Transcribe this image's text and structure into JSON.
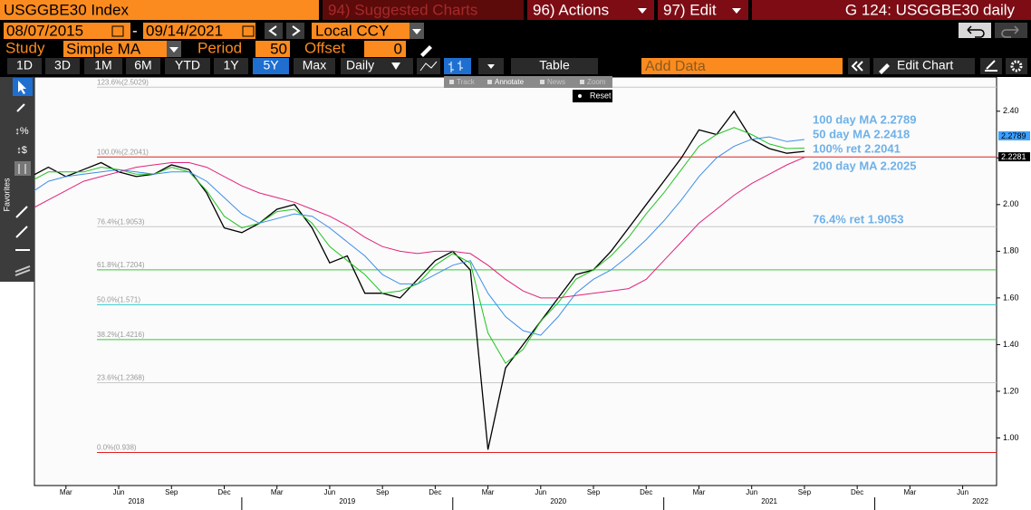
{
  "toolbar": {
    "security": "USGGBE30 Index",
    "suggested": "94) Suggested Charts",
    "actions": "96) Actions",
    "edit": "97) Edit",
    "chart_id": "G 124: USGGBE30 daily",
    "start_date": "08/07/2015",
    "date_separator": "-",
    "end_date": "09/14/2021",
    "currency": "Local CCY",
    "study_label": "Study",
    "study": "Simple MA",
    "period_label": "Period",
    "period": 50,
    "offset_label": "Offset",
    "offset": 0,
    "ranges": [
      "1D",
      "3D",
      "1M",
      "6M",
      "YTD",
      "1Y",
      "5Y",
      "Max"
    ],
    "frequency": "Daily",
    "table": "Table",
    "add_data": "Add Data",
    "edit_chart": "Edit Chart",
    "tools": [
      "Track",
      "Annotate",
      "News",
      "Zoom"
    ],
    "reset": "Reset",
    "favorites": "Favorites"
  },
  "chart_data": {
    "type": "line",
    "x": [
      "2018-01",
      "2018-02",
      "2018-03",
      "2018-04",
      "2018-05",
      "2018-06",
      "2018-07",
      "2018-08",
      "2018-09",
      "2018-10",
      "2018-11",
      "2018-12",
      "2019-01",
      "2019-02",
      "2019-03",
      "2019-04",
      "2019-05",
      "2019-06",
      "2019-07",
      "2019-08",
      "2019-09",
      "2019-10",
      "2019-11",
      "2019-12",
      "2020-01",
      "2020-02",
      "2020-03",
      "2020-04",
      "2020-05",
      "2020-06",
      "2020-07",
      "2020-08",
      "2020-09",
      "2020-10",
      "2020-11",
      "2020-12",
      "2021-01",
      "2021-02",
      "2021-03",
      "2021-04",
      "2021-05",
      "2021-06",
      "2021-07",
      "2021-08",
      "2021-09"
    ],
    "series": [
      {
        "color": "#000000",
        "values": [
          2.12,
          2.16,
          2.12,
          2.15,
          2.18,
          2.14,
          2.12,
          2.13,
          2.17,
          2.15,
          2.05,
          1.9,
          1.88,
          1.92,
          1.98,
          2.0,
          1.9,
          1.75,
          1.78,
          1.62,
          1.62,
          1.6,
          1.68,
          1.76,
          1.8,
          1.72,
          0.95,
          1.3,
          1.4,
          1.5,
          1.6,
          1.7,
          1.72,
          1.8,
          1.9,
          2.0,
          2.1,
          2.2,
          2.32,
          2.3,
          2.4,
          2.28,
          2.24,
          2.22,
          2.2281
        ]
      },
      {
        "color": "#22c322",
        "values": [
          2.1,
          2.14,
          2.14,
          2.14,
          2.16,
          2.15,
          2.13,
          2.13,
          2.16,
          2.14,
          2.06,
          1.95,
          1.9,
          1.92,
          1.97,
          1.98,
          1.92,
          1.82,
          1.76,
          1.7,
          1.62,
          1.63,
          1.66,
          1.74,
          1.79,
          1.75,
          1.45,
          1.32,
          1.38,
          1.5,
          1.58,
          1.68,
          1.72,
          1.78,
          1.86,
          1.96,
          2.05,
          2.15,
          2.25,
          2.3,
          2.33,
          2.3,
          2.26,
          2.24,
          2.2418
        ]
      },
      {
        "color": "#3d8ee8",
        "values": [
          2.05,
          2.1,
          2.12,
          2.13,
          2.14,
          2.15,
          2.14,
          2.13,
          2.14,
          2.14,
          2.1,
          2.03,
          1.96,
          1.92,
          1.94,
          1.96,
          1.95,
          1.9,
          1.84,
          1.78,
          1.7,
          1.66,
          1.66,
          1.7,
          1.74,
          1.76,
          1.62,
          1.52,
          1.46,
          1.44,
          1.52,
          1.62,
          1.68,
          1.72,
          1.78,
          1.85,
          1.93,
          2.02,
          2.12,
          2.2,
          2.25,
          2.28,
          2.29,
          2.27,
          2.2789
        ]
      },
      {
        "color": "#e0237a",
        "values": [
          1.98,
          2.02,
          2.06,
          2.1,
          2.12,
          2.14,
          2.16,
          2.17,
          2.18,
          2.18,
          2.16,
          2.12,
          2.08,
          2.05,
          2.03,
          2.01,
          1.98,
          1.95,
          1.91,
          1.86,
          1.82,
          1.8,
          1.79,
          1.8,
          1.8,
          1.79,
          1.74,
          1.68,
          1.63,
          1.6,
          1.6,
          1.61,
          1.62,
          1.63,
          1.64,
          1.68,
          1.76,
          1.84,
          1.92,
          1.98,
          2.04,
          2.09,
          2.13,
          2.17,
          2.2025
        ]
      }
    ],
    "retracements": [
      {
        "value": 2.5029,
        "label": "123.6%(2.5029)",
        "color": "#c8c8c8"
      },
      {
        "value": 2.2041,
        "label": "100.0%(2.2041)",
        "color": "#e02020"
      },
      {
        "value": 1.9053,
        "label": "76.4%(1.9053)",
        "color": "#c8c8c8"
      },
      {
        "value": 1.7204,
        "label": "61.8%(1.7204)",
        "color": "#33cc33"
      },
      {
        "value": 1.571,
        "label": "50.0%(1.571)",
        "color": "#33cccc"
      },
      {
        "value": 1.4216,
        "label": "38.2%(1.4216)",
        "color": "#33cc33"
      },
      {
        "value": 1.2368,
        "label": "23.6%(1.2368)",
        "color": "#c8c8c8"
      },
      {
        "value": 0.938,
        "label": "0.0%(0.938)",
        "color": "#e02020"
      }
    ],
    "annotations": [
      "100 day MA 2.2789",
      "50 day MA 2.2418",
      "100% ret 2.2041",
      "200 day MA 2.2025",
      "76.4% ret 1.9053"
    ],
    "annotation_color": "#6fb1e8",
    "price_tags": {
      "values": [
        2.2789,
        2.2281
      ],
      "colors": [
        "#3fa0ff",
        "#000000"
      ],
      "text_colors": [
        "#000000",
        "#ffffff"
      ]
    },
    "ylim": [
      0.8,
      2.535
    ],
    "yticks": [
      {
        "value": 1,
        "label": "1.00"
      },
      {
        "value": 1.2,
        "label": "1.20"
      },
      {
        "value": 1.4,
        "label": "1.40"
      },
      {
        "value": 1.6,
        "label": "1.60"
      },
      {
        "value": 1.8,
        "label": "1.80"
      },
      {
        "value": 2,
        "label": "2.00"
      },
      {
        "value": 2.2,
        "label": "2.20"
      },
      {
        "value": 2.4,
        "label": "2.40"
      }
    ],
    "xlim": [
      "2018-01",
      "2022-07"
    ],
    "xticks": [
      {
        "value": "2018-03",
        "label": "Mar"
      },
      {
        "value": "2018-06",
        "label": "Jun"
      },
      {
        "value": "2018-09",
        "label": "Sep"
      },
      {
        "value": "2018-12",
        "label": "Dec"
      },
      {
        "value": "2019-03",
        "label": "Mar"
      },
      {
        "value": "2019-06",
        "label": "Jun"
      },
      {
        "value": "2019-09",
        "label": "Sep"
      },
      {
        "value": "2019-12",
        "label": "Dec"
      },
      {
        "value": "2020-03",
        "label": "Mar"
      },
      {
        "value": "2020-06",
        "label": "Jun"
      },
      {
        "value": "2020-09",
        "label": "Sep"
      },
      {
        "value": "2020-12",
        "label": "Dec"
      },
      {
        "value": "2021-03",
        "label": "Mar"
      },
      {
        "value": "2021-06",
        "label": "Jun"
      },
      {
        "value": "2021-09",
        "label": "Sep"
      },
      {
        "value": "2021-12",
        "label": "Dec"
      },
      {
        "value": "2022-03",
        "label": "Mar"
      },
      {
        "value": "2022-06",
        "label": "Jun"
      }
    ],
    "years": [
      "2018",
      "2019",
      "2020",
      "2021",
      "2022"
    ],
    "grid": false
  }
}
